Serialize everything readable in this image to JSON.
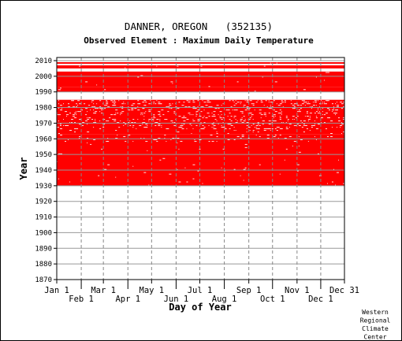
{
  "chart_data": {
    "type": "heatmap",
    "title": "DANNER, OREGON   (352135)",
    "subtitle": "Observed Element : Maximum Daily Temperature",
    "xlabel": "Day of Year",
    "ylabel": "Year",
    "xlim": [
      1,
      365
    ],
    "ylim": [
      1870,
      2012
    ],
    "yticks": [
      2010,
      2000,
      1990,
      1980,
      1970,
      1960,
      1950,
      1940,
      1930,
      1920,
      1910,
      1900,
      1890,
      1880,
      1870
    ],
    "xticks": [
      {
        "label": "Jan 1",
        "day": 1,
        "row": "top"
      },
      {
        "label": "Feb 1",
        "day": 32,
        "row": "bottom"
      },
      {
        "label": "Mar 1",
        "day": 60,
        "row": "top"
      },
      {
        "label": "Apr 1",
        "day": 91,
        "row": "bottom"
      },
      {
        "label": "May 1",
        "day": 121,
        "row": "top"
      },
      {
        "label": "Jun 1",
        "day": 152,
        "row": "bottom"
      },
      {
        "label": "Jul 1",
        "day": 182,
        "row": "top"
      },
      {
        "label": "Aug 1",
        "day": 213,
        "row": "bottom"
      },
      {
        "label": "Sep 1",
        "day": 244,
        "row": "top"
      },
      {
        "label": "Oct 1",
        "day": 274,
        "row": "bottom"
      },
      {
        "label": "Nov 1",
        "day": 305,
        "row": "top"
      },
      {
        "label": "Dec 1",
        "day": 335,
        "row": "bottom"
      },
      {
        "label": "Dec 31",
        "day": 365,
        "row": "top"
      }
    ],
    "data_color": "#ff0000",
    "data_extent": {
      "year_start": 1930,
      "year_end": 2011
    },
    "observed_periods": [
      {
        "year_start": 1930,
        "year_end": 1963
      },
      {
        "year_start": 1963,
        "year_end": 1985
      },
      {
        "year_start": 1990,
        "year_end": 1993
      },
      {
        "year_start": 1993,
        "year_end": 2010
      }
    ],
    "missing_periods": [
      {
        "year_start": 1985,
        "year_end": 1987
      },
      {
        "year_start": 1987,
        "year_end": 1988
      },
      {
        "year_start": 1988,
        "year_end": 1989
      },
      {
        "year_start": 2003,
        "year_end": 2004
      },
      {
        "year_start": 2004,
        "year_end": 2005
      },
      {
        "year_start": 2009,
        "year_end": 2010
      },
      {
        "year_start": 2007,
        "year_end": 2008
      }
    ],
    "grid": true,
    "credit": [
      "Western",
      "Regional",
      "Climate",
      "Center"
    ]
  }
}
